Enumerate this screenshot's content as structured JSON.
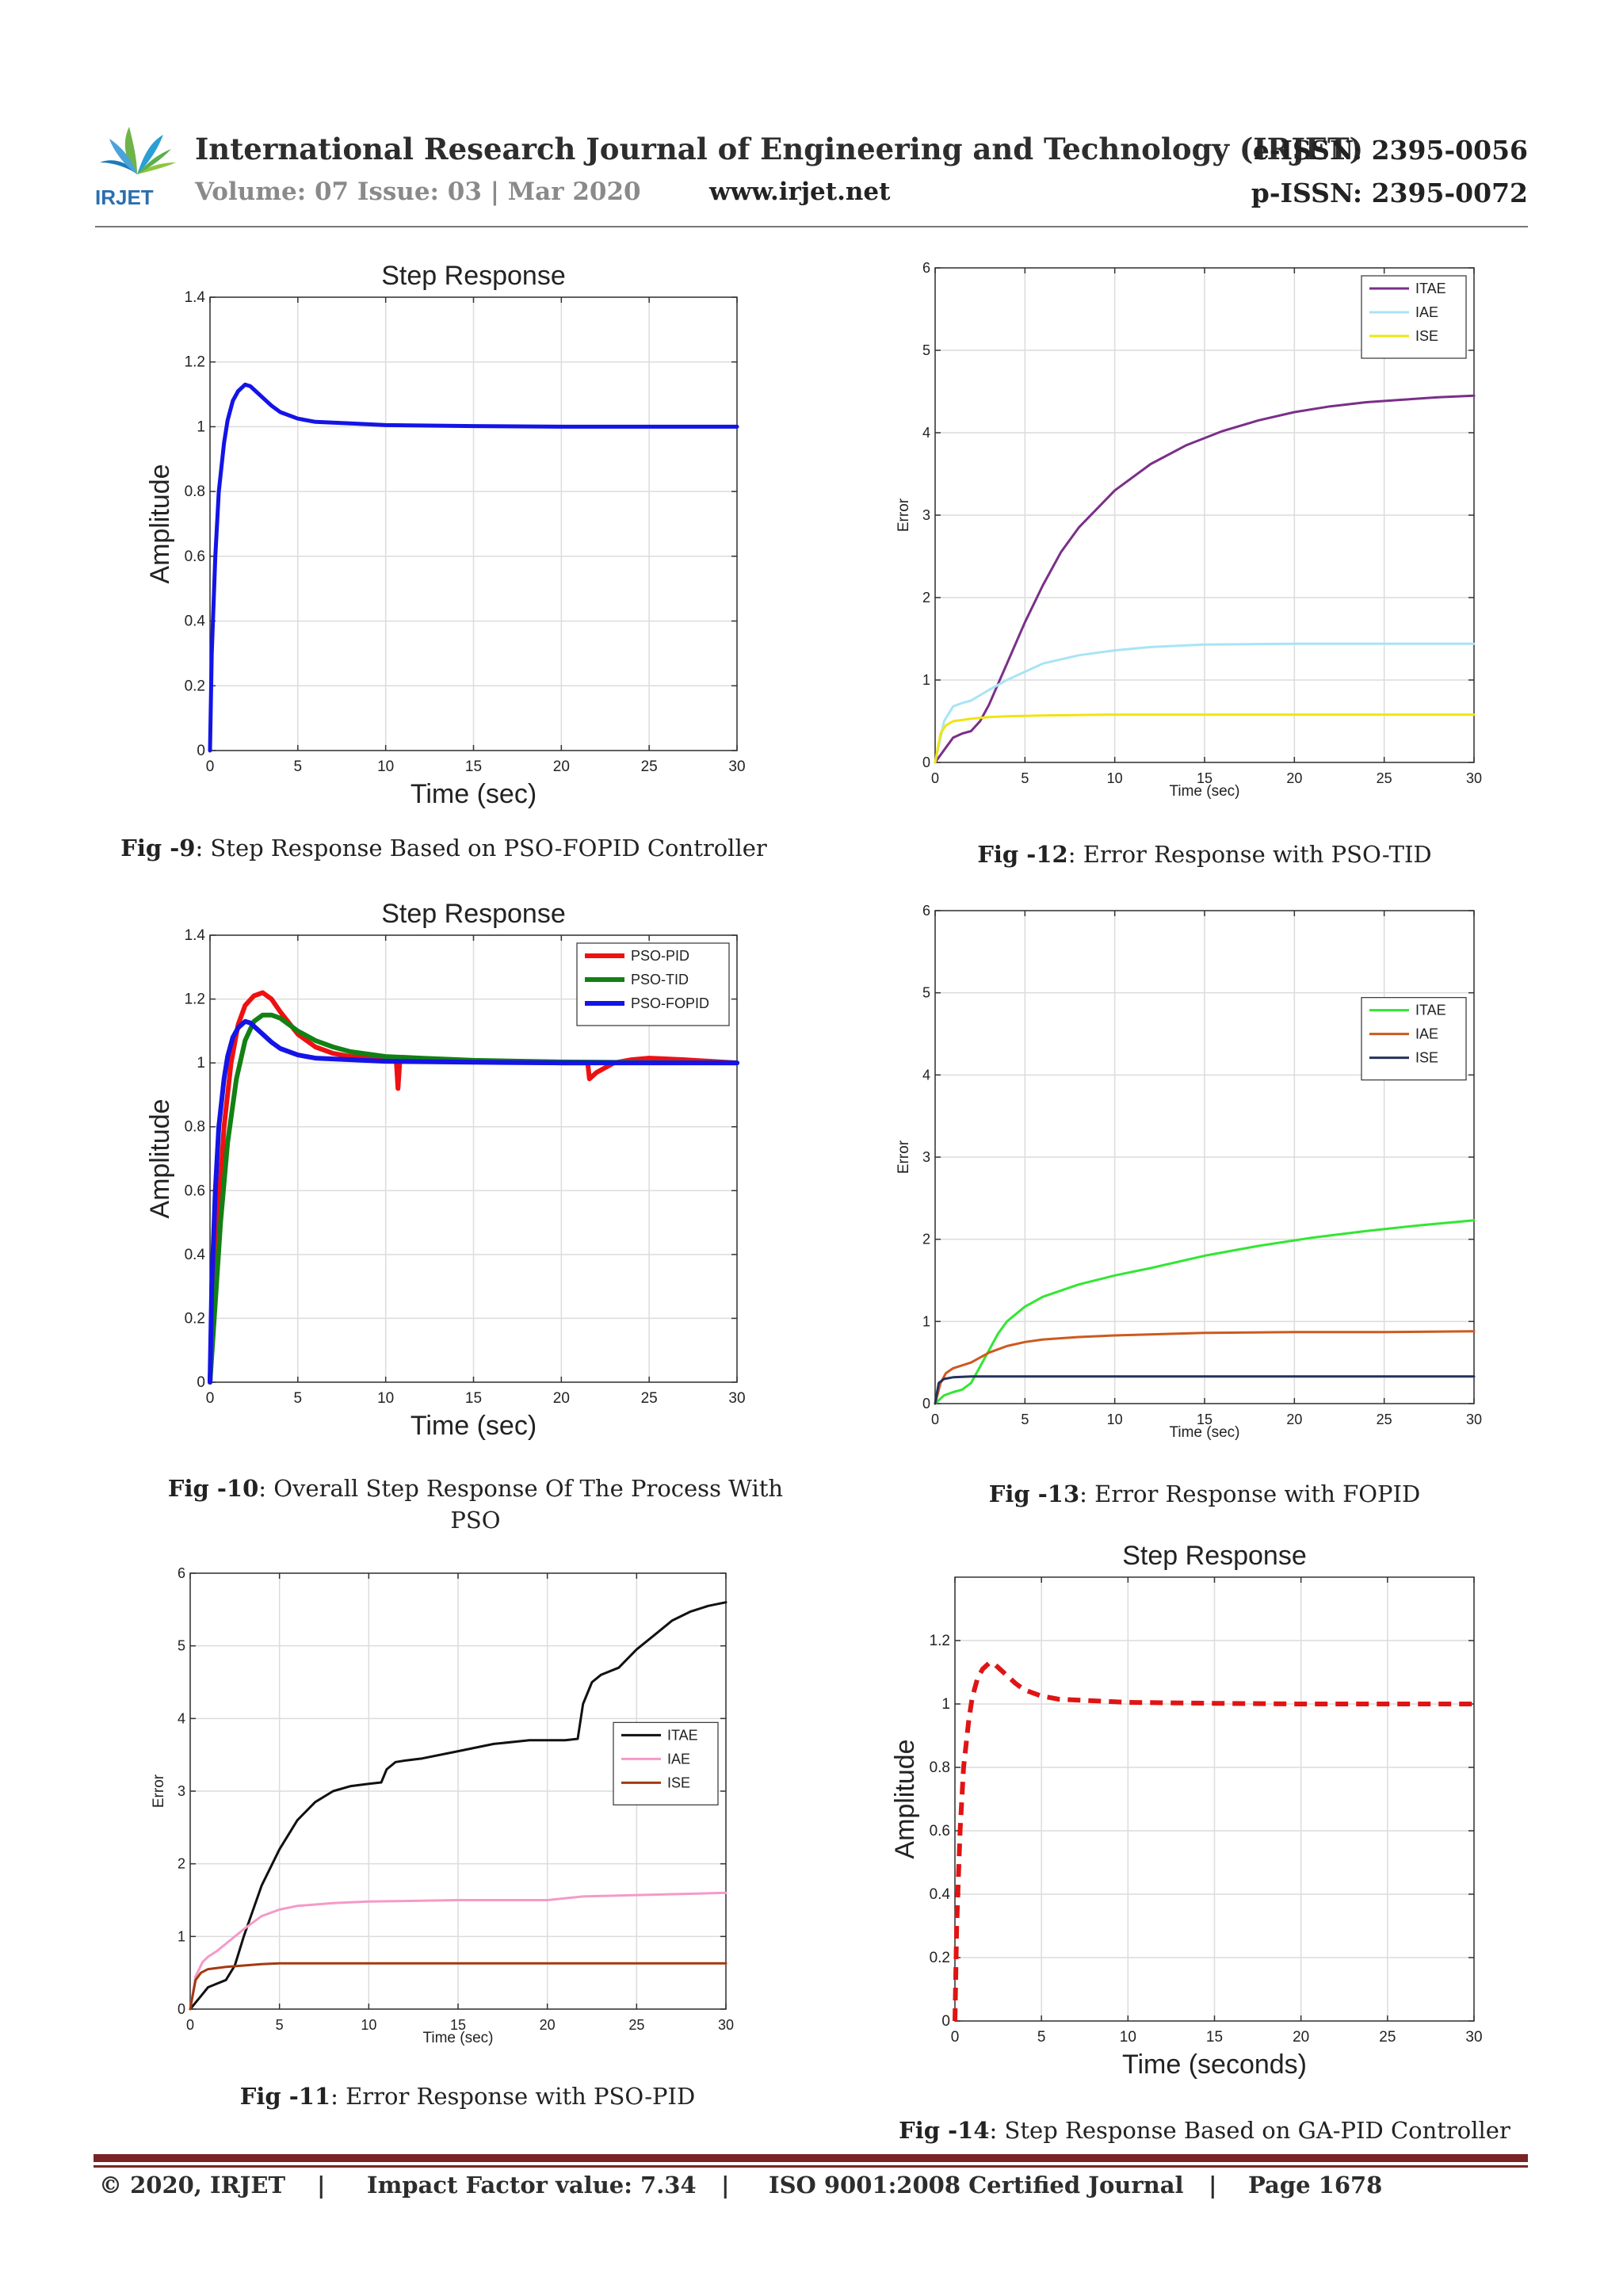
{
  "header": {
    "logo_text": "IRJET",
    "journal": "International Research Journal of Engineering and Technology (IRJET)",
    "e_issn": "e-ISSN: 2395-0056",
    "p_issn": "p-ISSN: 2395-0072",
    "volume": "Volume: 07 Issue: 03 | Mar 2020",
    "url": "www.irjet.net"
  },
  "captions": {
    "fig9": {
      "num": "Fig -9",
      "text": ": Step Response Based on PSO-FOPID Controller"
    },
    "fig10": {
      "num": "Fig -10",
      "text": ": Overall Step Response Of The Process With",
      "text2": "PSO"
    },
    "fig11": {
      "num": "Fig -11",
      "text": ": Error Response  with PSO-PID"
    },
    "fig12": {
      "num": "Fig -12",
      "text": ": Error Response  with PSO-TID"
    },
    "fig13": {
      "num": "Fig -13",
      "text": ": Error Response  with FOPID"
    },
    "fig14": {
      "num": "Fig -14",
      "text": ": Step Response Based on GA-PID Controller"
    }
  },
  "footer": {
    "copyright": "© 2020, IRJET",
    "sep1": "|",
    "impact": "Impact Factor value: 7.34",
    "sep2": "|",
    "iso": "ISO 9001:2008 Certified Journal",
    "sep3": "|",
    "page": "Page 1678"
  },
  "chart_data": [
    {
      "id": "fig9",
      "type": "line",
      "title": "Step Response",
      "xlabel": "Time (sec)",
      "ylabel": "Amplitude",
      "xlim": [
        0,
        30
      ],
      "ylim": [
        0,
        1.4
      ],
      "xticks": [
        0,
        5,
        10,
        15,
        20,
        25,
        30
      ],
      "yticks": [
        0,
        0.2,
        0.4,
        0.6,
        0.8,
        1,
        1.2,
        1.4
      ],
      "grid": true,
      "series": [
        {
          "color": "#1414e6",
          "width": 5,
          "x": [
            0,
            0.1,
            0.3,
            0.5,
            0.8,
            1.0,
            1.3,
            1.6,
            2.0,
            2.3,
            2.6,
            3.0,
            3.5,
            4.0,
            5.0,
            6.0,
            8.0,
            10.0,
            15.0,
            20.0,
            25.0,
            30.0
          ],
          "y": [
            0,
            0.3,
            0.6,
            0.8,
            0.95,
            1.02,
            1.08,
            1.11,
            1.13,
            1.125,
            1.11,
            1.09,
            1.065,
            1.045,
            1.025,
            1.015,
            1.01,
            1.005,
            1.002,
            1.0,
            1.0,
            1.0
          ]
        }
      ]
    },
    {
      "id": "fig10",
      "type": "line",
      "title": "Step Response",
      "xlabel": "Time (sec)",
      "ylabel": "Amplitude",
      "xlim": [
        0,
        30
      ],
      "ylim": [
        0,
        1.4
      ],
      "xticks": [
        0,
        5,
        10,
        15,
        20,
        25,
        30
      ],
      "yticks": [
        0,
        0.2,
        0.4,
        0.6,
        0.8,
        1,
        1.2,
        1.4
      ],
      "grid": true,
      "legend": "top-right",
      "series": [
        {
          "name": "PSO-PID",
          "color": "#ee1111",
          "width": 6,
          "x": [
            0,
            0.2,
            0.5,
            0.8,
            1.2,
            1.6,
            2.0,
            2.5,
            3.0,
            3.5,
            4.0,
            5.0,
            6.0,
            7.0,
            8.0,
            9.0,
            10.0,
            10.6,
            10.7,
            10.8,
            11.0,
            12.0,
            15.0,
            20.0,
            21.5,
            21.6,
            22.0,
            23.0,
            24.0,
            25.0,
            27.0,
            30.0
          ],
          "y": [
            0,
            0.3,
            0.55,
            0.8,
            1.0,
            1.12,
            1.18,
            1.21,
            1.22,
            1.2,
            1.16,
            1.09,
            1.05,
            1.03,
            1.02,
            1.015,
            1.01,
            1.01,
            0.92,
            1.0,
            1.01,
            1.01,
            1.005,
            1.0,
            1.0,
            0.95,
            0.97,
            1.0,
            1.01,
            1.015,
            1.01,
            1.0
          ]
        },
        {
          "name": "PSO-TID",
          "color": "#138013",
          "width": 6,
          "x": [
            0,
            0.3,
            0.6,
            1.0,
            1.5,
            2.0,
            2.5,
            3.0,
            3.5,
            4.0,
            5.0,
            6.0,
            7.0,
            8.0,
            10.0,
            12.0,
            15.0,
            20.0,
            25.0,
            30.0
          ],
          "y": [
            0,
            0.25,
            0.5,
            0.75,
            0.95,
            1.07,
            1.13,
            1.15,
            1.15,
            1.14,
            1.1,
            1.07,
            1.05,
            1.035,
            1.02,
            1.015,
            1.008,
            1.003,
            1.001,
            1.0
          ]
        },
        {
          "name": "PSO-FOPID",
          "color": "#1414e6",
          "width": 6,
          "x": [
            0,
            0.1,
            0.3,
            0.5,
            0.8,
            1.0,
            1.3,
            1.6,
            2.0,
            2.3,
            2.6,
            3.0,
            3.5,
            4.0,
            5.0,
            6.0,
            8.0,
            10.0,
            15.0,
            20.0,
            25.0,
            30.0
          ],
          "y": [
            0,
            0.3,
            0.6,
            0.8,
            0.95,
            1.02,
            1.08,
            1.11,
            1.13,
            1.125,
            1.11,
            1.09,
            1.065,
            1.045,
            1.025,
            1.015,
            1.01,
            1.005,
            1.002,
            1.0,
            1.0,
            1.0
          ]
        }
      ]
    },
    {
      "id": "fig11",
      "type": "line",
      "title": "",
      "xlabel": "Time (sec)",
      "ylabel": "Error",
      "xlim": [
        0,
        30
      ],
      "ylim": [
        0,
        6
      ],
      "xticks": [
        0,
        5,
        10,
        15,
        20,
        25,
        30
      ],
      "yticks": [
        0,
        1,
        2,
        3,
        4,
        5,
        6
      ],
      "grid": true,
      "legend": "right",
      "series": [
        {
          "name": "ITAE",
          "color": "#111111",
          "width": 3,
          "x": [
            0,
            0.5,
            1.0,
            1.5,
            2.0,
            2.5,
            3.0,
            4.0,
            5.0,
            6.0,
            7.0,
            8.0,
            9.0,
            10.0,
            10.7,
            11.0,
            11.5,
            12.0,
            13.0,
            15.0,
            17.0,
            19.0,
            21.0,
            21.7,
            22.0,
            22.5,
            23.0,
            24.0,
            25.0,
            26.0,
            27.0,
            28.0,
            29.0,
            30.0
          ],
          "y": [
            0,
            0.15,
            0.3,
            0.35,
            0.4,
            0.6,
            1.0,
            1.7,
            2.2,
            2.6,
            2.85,
            3.0,
            3.07,
            3.1,
            3.12,
            3.3,
            3.4,
            3.42,
            3.45,
            3.55,
            3.65,
            3.7,
            3.7,
            3.72,
            4.2,
            4.5,
            4.6,
            4.7,
            4.95,
            5.15,
            5.35,
            5.47,
            5.55,
            5.6
          ]
        },
        {
          "name": "IAE",
          "color": "#f49ac8",
          "width": 3,
          "x": [
            0,
            0.3,
            0.7,
            1.0,
            1.5,
            2.0,
            3.0,
            4.0,
            5.0,
            6.0,
            8.0,
            10.0,
            15.0,
            20.0,
            22.0,
            25.0,
            30.0
          ],
          "y": [
            0,
            0.45,
            0.65,
            0.72,
            0.8,
            0.9,
            1.1,
            1.28,
            1.37,
            1.42,
            1.46,
            1.48,
            1.5,
            1.5,
            1.55,
            1.57,
            1.6
          ]
        },
        {
          "name": "ISE",
          "color": "#a33a10",
          "width": 3,
          "x": [
            0,
            0.3,
            0.6,
            1.0,
            2.0,
            3.0,
            4.0,
            5.0,
            10.0,
            20.0,
            30.0
          ],
          "y": [
            0,
            0.4,
            0.5,
            0.55,
            0.58,
            0.6,
            0.62,
            0.63,
            0.63,
            0.63,
            0.63
          ]
        }
      ]
    },
    {
      "id": "fig12",
      "type": "line",
      "title": "",
      "xlabel": "Time (sec)",
      "ylabel": "Error",
      "xlim": [
        0,
        30
      ],
      "ylim": [
        0,
        6
      ],
      "xticks": [
        0,
        5,
        10,
        15,
        20,
        25,
        30
      ],
      "yticks": [
        0,
        1,
        2,
        3,
        4,
        5,
        6
      ],
      "grid": true,
      "legend": "top-right",
      "series": [
        {
          "name": "ITAE",
          "color": "#7a2f88",
          "width": 3,
          "x": [
            0,
            0.5,
            1.0,
            1.5,
            2.0,
            2.5,
            3.0,
            3.5,
            4.0,
            5.0,
            6.0,
            7.0,
            8.0,
            10.0,
            12.0,
            14.0,
            16.0,
            18.0,
            20.0,
            22.0,
            24.0,
            26.0,
            28.0,
            30.0
          ],
          "y": [
            0,
            0.15,
            0.3,
            0.35,
            0.38,
            0.5,
            0.7,
            0.95,
            1.2,
            1.7,
            2.15,
            2.55,
            2.85,
            3.3,
            3.62,
            3.85,
            4.02,
            4.15,
            4.25,
            4.32,
            4.37,
            4.4,
            4.43,
            4.45
          ]
        },
        {
          "name": "IAE",
          "color": "#a8e4f4",
          "width": 3,
          "x": [
            0,
            0.5,
            1.0,
            1.5,
            2.0,
            3.0,
            4.0,
            5.0,
            6.0,
            8.0,
            10.0,
            12.0,
            15.0,
            20.0,
            25.0,
            30.0
          ],
          "y": [
            0,
            0.5,
            0.68,
            0.72,
            0.75,
            0.88,
            1.0,
            1.1,
            1.2,
            1.3,
            1.36,
            1.4,
            1.43,
            1.44,
            1.44,
            1.44
          ]
        },
        {
          "name": "ISE",
          "color": "#f0e414",
          "width": 3,
          "x": [
            0,
            0.3,
            0.6,
            1.0,
            2.0,
            3.0,
            4.0,
            6.0,
            10.0,
            20.0,
            30.0
          ],
          "y": [
            0,
            0.35,
            0.45,
            0.5,
            0.53,
            0.55,
            0.56,
            0.57,
            0.58,
            0.58,
            0.58
          ]
        }
      ]
    },
    {
      "id": "fig13",
      "type": "line",
      "title": "",
      "xlabel": "Time (sec)",
      "ylabel": "Error",
      "xlim": [
        0,
        30
      ],
      "ylim": [
        0,
        6
      ],
      "xticks": [
        0,
        5,
        10,
        15,
        20,
        25,
        30
      ],
      "yticks": [
        0,
        1,
        2,
        3,
        4,
        5,
        6
      ],
      "grid": true,
      "legend": "right",
      "series": [
        {
          "name": "ITAE",
          "color": "#33e633",
          "width": 3,
          "x": [
            0,
            0.5,
            1.0,
            1.5,
            2.0,
            2.5,
            3.0,
            3.5,
            4.0,
            5.0,
            6.0,
            8.0,
            10.0,
            12.0,
            15.0,
            18.0,
            21.0,
            24.0,
            27.0,
            30.0
          ],
          "y": [
            0,
            0.1,
            0.14,
            0.17,
            0.25,
            0.45,
            0.65,
            0.85,
            1.0,
            1.18,
            1.3,
            1.45,
            1.56,
            1.65,
            1.8,
            1.92,
            2.02,
            2.1,
            2.17,
            2.23
          ]
        },
        {
          "name": "IAE",
          "color": "#cc5a1e",
          "width": 3,
          "x": [
            0,
            0.3,
            0.6,
            1.0,
            2.0,
            3.0,
            4.0,
            5.0,
            6.0,
            8.0,
            10.0,
            15.0,
            20.0,
            25.0,
            30.0
          ],
          "y": [
            0,
            0.25,
            0.37,
            0.43,
            0.5,
            0.62,
            0.7,
            0.75,
            0.78,
            0.81,
            0.83,
            0.86,
            0.87,
            0.87,
            0.88
          ]
        },
        {
          "name": "ISE",
          "color": "#24335a",
          "width": 3,
          "x": [
            0,
            0.2,
            0.5,
            1.0,
            2.0,
            5.0,
            10.0,
            20.0,
            30.0
          ],
          "y": [
            0,
            0.25,
            0.3,
            0.32,
            0.33,
            0.33,
            0.33,
            0.33,
            0.33
          ]
        }
      ]
    },
    {
      "id": "fig14",
      "type": "line",
      "title": "Step Response",
      "xlabel": "Time (seconds)",
      "ylabel": "Amplitude",
      "xlim": [
        0,
        30
      ],
      "ylim": [
        0,
        1.4
      ],
      "xticks": [
        0,
        5,
        10,
        15,
        20,
        25,
        30
      ],
      "yticks": [
        0,
        0.2,
        0.4,
        0.6,
        0.8,
        1,
        1.2
      ],
      "grid": true,
      "series": [
        {
          "color": "#e01414",
          "width": 6,
          "dashed": true,
          "x": [
            0,
            0.1,
            0.3,
            0.5,
            0.8,
            1.0,
            1.3,
            1.6,
            2.0,
            2.3,
            2.6,
            3.0,
            3.5,
            4.0,
            5.0,
            6.0,
            8.0,
            10.0,
            15.0,
            20.0,
            25.0,
            30.0
          ],
          "y": [
            0,
            0.3,
            0.6,
            0.8,
            0.95,
            1.02,
            1.08,
            1.11,
            1.13,
            1.125,
            1.11,
            1.09,
            1.065,
            1.045,
            1.025,
            1.015,
            1.01,
            1.005,
            1.002,
            1.0,
            1.0,
            1.0
          ]
        }
      ]
    }
  ]
}
